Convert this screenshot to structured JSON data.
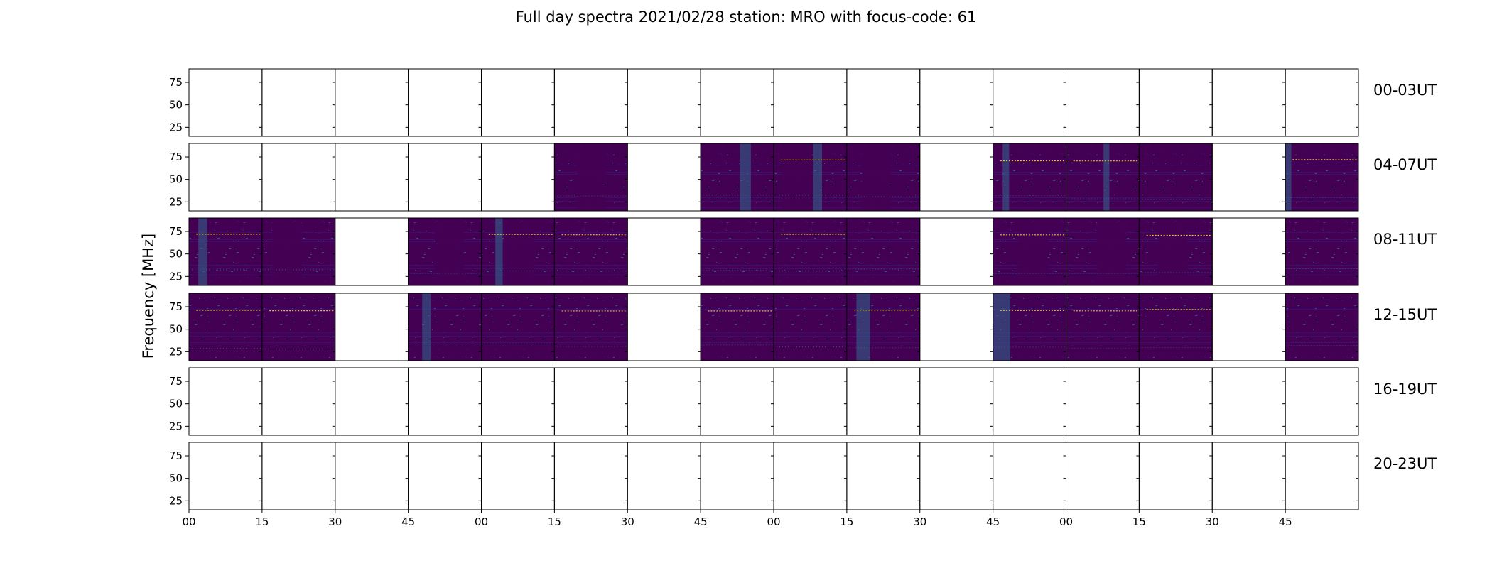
{
  "chart_data": {
    "type": "heatmap",
    "title": "Full day spectra 2021/02/28 station: MRO with focus-code: 61",
    "ylabel": "Frequency [MHz]",
    "ylim": [
      15,
      90
    ],
    "yticks": [
      25,
      50,
      75
    ],
    "xticks": [
      "00",
      "15",
      "30",
      "45",
      "00",
      "15",
      "30",
      "45",
      "00",
      "15",
      "30",
      "45",
      "00",
      "15",
      "30",
      "45"
    ],
    "colormap": "viridis",
    "colors": {
      "background": "#440154",
      "dark": "#3b0f70",
      "mid": "#31688e",
      "teal": "#21918c",
      "bright": "#fde725"
    },
    "rows": [
      {
        "label": "00-03UT",
        "has_data": [
          0,
          0,
          0,
          0,
          0,
          0,
          0,
          0,
          0,
          0,
          0,
          0,
          0,
          0,
          0,
          0
        ]
      },
      {
        "label": "04-07UT",
        "has_data": [
          0,
          0,
          0,
          0,
          0,
          1,
          0,
          1,
          1,
          1,
          0,
          1,
          1,
          1,
          0,
          1
        ]
      },
      {
        "label": "08-11UT",
        "has_data": [
          1,
          1,
          0,
          1,
          1,
          1,
          0,
          1,
          1,
          1,
          0,
          1,
          1,
          1,
          0,
          1
        ]
      },
      {
        "label": "12-15UT",
        "has_data": [
          1,
          1,
          0,
          1,
          1,
          1,
          0,
          1,
          1,
          1,
          0,
          1,
          1,
          1,
          0,
          1
        ]
      },
      {
        "label": "16-19UT",
        "has_data": [
          0,
          0,
          0,
          0,
          0,
          0,
          0,
          0,
          0,
          0,
          0,
          0,
          0,
          0,
          0,
          0
        ]
      },
      {
        "label": "20-23UT",
        "has_data": [
          0,
          0,
          0,
          0,
          0,
          0,
          0,
          0,
          0,
          0,
          0,
          0,
          0,
          0,
          0,
          0
        ]
      }
    ]
  }
}
